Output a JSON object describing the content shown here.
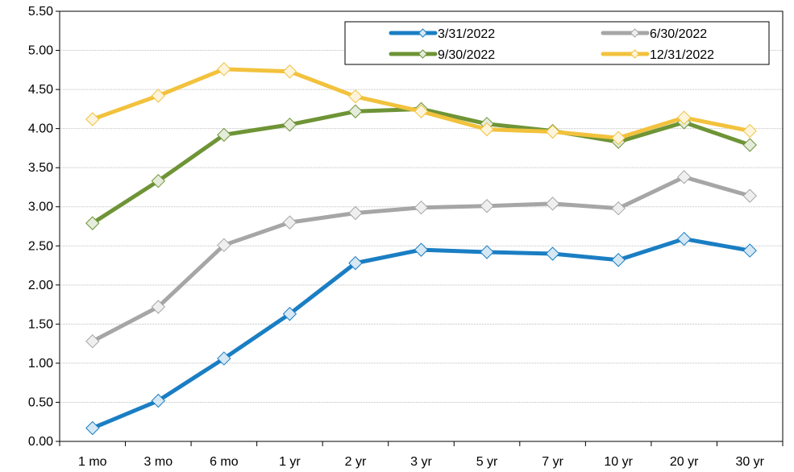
{
  "chart_data": {
    "type": "line",
    "categories": [
      "1 mo",
      "3 mo",
      "6 mo",
      "1 yr",
      "2 yr",
      "3 yr",
      "5 yr",
      "7 yr",
      "10 yr",
      "20 yr",
      "30 yr"
    ],
    "ylim": [
      0,
      5.5
    ],
    "yticks": [
      "0.00",
      "0.50",
      "1.00",
      "1.50",
      "2.00",
      "2.50",
      "3.00",
      "3.50",
      "4.00",
      "4.50",
      "5.00",
      "5.50"
    ],
    "grid": true,
    "legend_position": "top-right",
    "series": [
      {
        "name": "3/31/2022",
        "color": "#1a7ec3",
        "values": [
          0.17,
          0.52,
          1.06,
          1.63,
          2.28,
          2.45,
          2.42,
          2.4,
          2.32,
          2.59,
          2.44
        ]
      },
      {
        "name": "6/30/2022",
        "color": "#a6a6a6",
        "values": [
          1.28,
          1.72,
          2.51,
          2.8,
          2.92,
          2.99,
          3.01,
          3.04,
          2.98,
          3.38,
          3.14
        ]
      },
      {
        "name": "9/30/2022",
        "color": "#6e9436",
        "values": [
          2.79,
          3.33,
          3.92,
          4.05,
          4.22,
          4.25,
          4.06,
          3.97,
          3.83,
          4.08,
          3.79
        ]
      },
      {
        "name": "12/31/2022",
        "color": "#f2c23d",
        "values": [
          4.12,
          4.42,
          4.76,
          4.73,
          4.41,
          4.22,
          3.99,
          3.96,
          3.88,
          4.14,
          3.97
        ]
      }
    ]
  }
}
